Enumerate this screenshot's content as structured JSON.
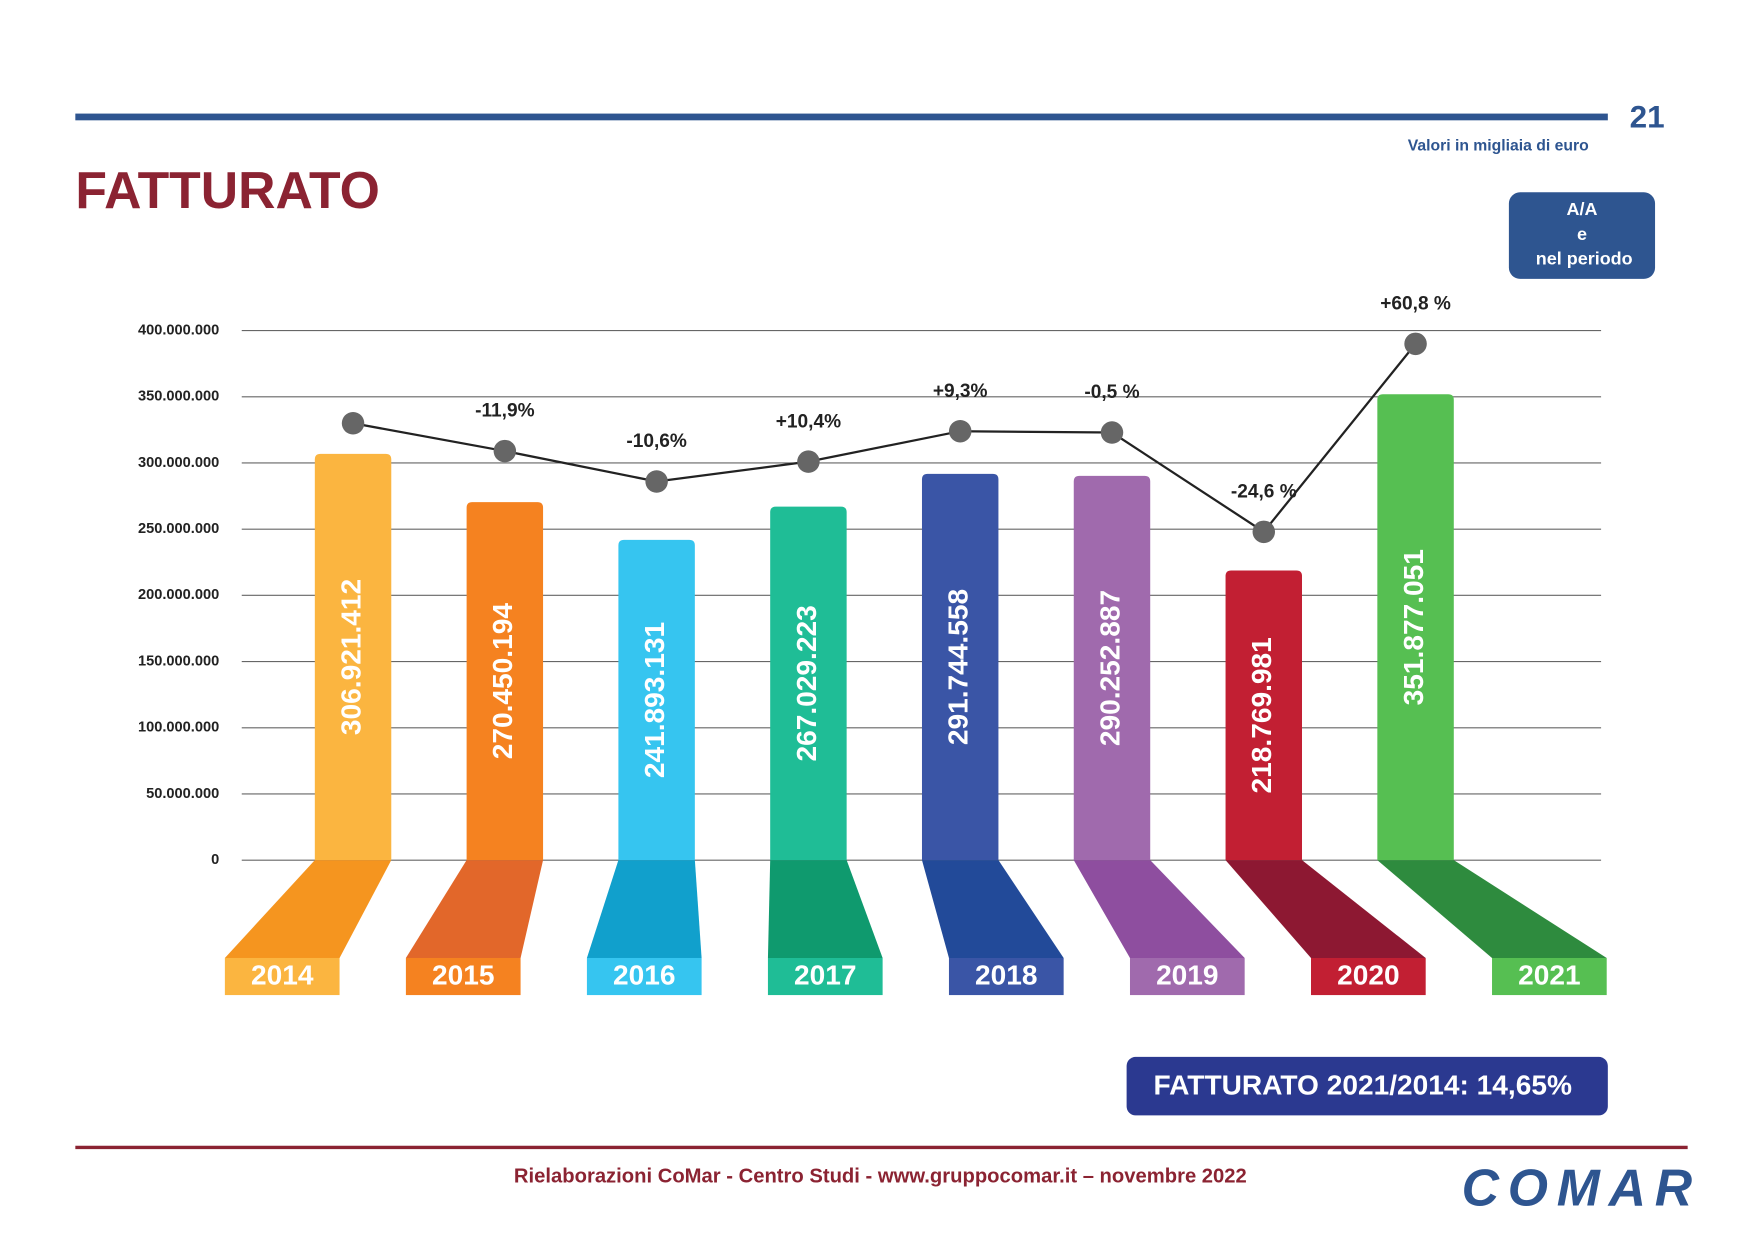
{
  "page_number": "21",
  "note": "Valori in migliaia di euro",
  "title": "FATTURATO",
  "legend_box": [
    "A/A",
    "e",
    "nel periodo"
  ],
  "summary": "FATTURATO 2021/2014: 14,65%",
  "footer": "Rielaborazioni CoMar - Centro Studi - www.gruppocomar.it – novembre 2022",
  "logo": "COMAR",
  "chart_data": {
    "type": "bar",
    "categories": [
      "2014",
      "2015",
      "2016",
      "2017",
      "2018",
      "2019",
      "2020",
      "2021"
    ],
    "values": [
      306921412,
      270450194,
      241893131,
      267029223,
      291744558,
      290252887,
      218769981,
      351877051
    ],
    "value_labels": [
      "306.921.412",
      "270.450.194",
      "241.893.131",
      "267.029.223",
      "291.744.558",
      "290.252.887",
      "218.769.981",
      "351.877.051"
    ],
    "colors": [
      "#fbb540",
      "#f58220",
      "#36c5f0",
      "#1fbd96",
      "#3a55a6",
      "#a06aad",
      "#c21f33",
      "#56bf52"
    ],
    "base_colors": [
      "#f5951f",
      "#e2672a",
      "#11a0cc",
      "#0f9a6e",
      "#224a99",
      "#8e4e9f",
      "#8d1832",
      "#2e8b3e"
    ],
    "line": {
      "color": "#222222",
      "marker_color": "#666666",
      "values": [
        330000000,
        309000000,
        286000000,
        301000000,
        324000000,
        323000000,
        248000000,
        390000000
      ],
      "labels": [
        null,
        "-11,9%",
        "-10,6%",
        "+10,4%",
        "+9,3%",
        "-0,5 %",
        "-24,6 %",
        "+60,8 %"
      ]
    },
    "ylim": [
      0,
      400000000
    ],
    "yticks": [
      0,
      {
        "value": 50000000,
        "label": "50.000.000"
      },
      {
        "value": 100000000,
        "label": "100.000.000"
      },
      {
        "value": 150000000,
        "label": "150.000.000"
      },
      {
        "value": 200000000,
        "label": "200.000.000"
      },
      {
        "value": 250000000,
        "label": "250.000.000"
      },
      {
        "value": 300000000,
        "label": "300.000.000"
      },
      {
        "value": 350000000,
        "label": "350.000.000"
      },
      {
        "value": 400000000,
        "label": "400.000.000"
      }
    ],
    "grid": true
  }
}
